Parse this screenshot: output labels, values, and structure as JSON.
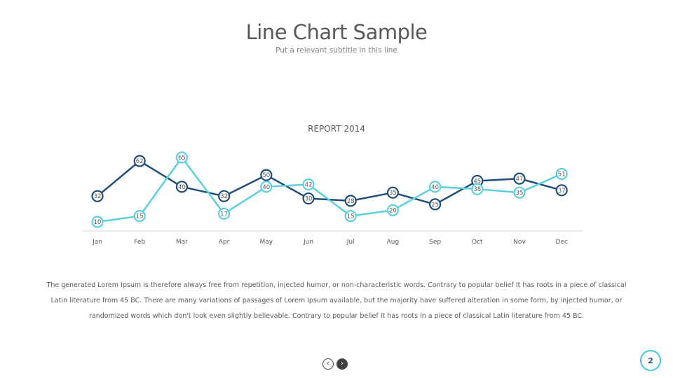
{
  "slide": {
    "title": "Line Chart Sample",
    "subtitle": "Put a relevant subtitle in this line",
    "body_text": "The generated Lorem Ipsum is therefore always free from repetition, injected humor, or non-characteristic words. Contrary to popular belief It has roots in a piece of classical Latin literature from 45 BC. There are many variations of passages of Lorem Ipsum available, but the majority have suffered alteration in some form, by injected humor, or randomized words which don't look even slightly believable. Contrary to popular belief It has roots in a piece of classical Latin literature from 45 BC.",
    "page_number": "2",
    "nav": {
      "prev_icon": "chevron-left-icon",
      "next_icon": "chevron-right-icon"
    }
  },
  "chart_data": {
    "type": "line",
    "title": "REPORT 2014",
    "xlabel": "",
    "ylabel": "",
    "categories": [
      "Jan",
      "Feb",
      "Mar",
      "Apr",
      "May",
      "Jun",
      "Jul",
      "Aug",
      "Sep",
      "Oct",
      "Nov",
      "Dec"
    ],
    "series": [
      {
        "values": [
          32,
          62,
          40,
          32,
          50,
          30,
          28,
          35,
          25,
          45,
          47,
          37
        ],
        "color": "#1f4e79"
      },
      {
        "values": [
          10,
          15,
          65,
          17,
          40,
          42,
          15,
          20,
          40,
          38,
          35,
          51
        ],
        "color": "#5bd0dc"
      }
    ],
    "grid": false,
    "legend": "none",
    "axis_color": "#d9d9d9"
  }
}
